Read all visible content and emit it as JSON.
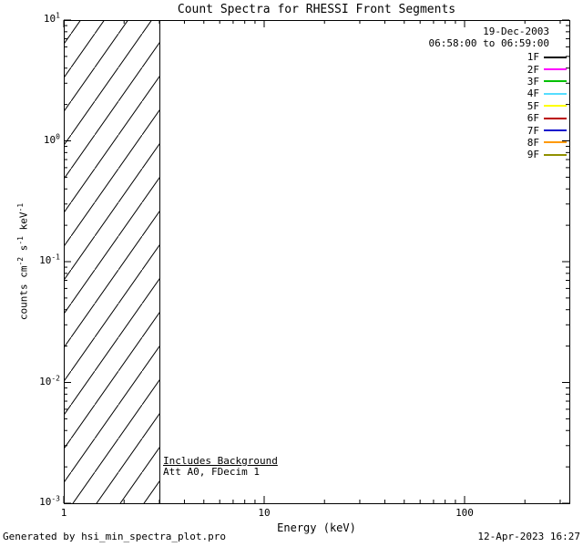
{
  "footer": {
    "left": "Generated by hsi_min_spectra_plot.pro",
    "right": "12-Apr-2023 16:27"
  },
  "chart_data": {
    "type": "line",
    "title": "Count Spectra for RHESSI Front Segments",
    "xlabel": "Energy (keV)",
    "ylabel": "counts cm-2 s-1 keV-1",
    "ylabel_tokens": [
      {
        "t": "counts cm"
      },
      {
        "t": "-2",
        "sup": true
      },
      {
        "t": " s"
      },
      {
        "t": "-1",
        "sup": true
      },
      {
        "t": " keV"
      },
      {
        "t": "-1",
        "sup": true
      }
    ],
    "xscale": "log",
    "yscale": "log",
    "xlim": [
      1,
      333
    ],
    "ylim": [
      0.001,
      10
    ],
    "x_major_ticks": [
      1,
      10,
      100
    ],
    "x_tick_labels": [
      "1",
      "10",
      "100"
    ],
    "y_major_tick_exponents": [
      1,
      0,
      -1,
      -2,
      -3
    ],
    "grid": false,
    "legend": {
      "position": "top-right",
      "header": [
        "19-Dec-2003",
        "06:58:00 to 06:59:00"
      ]
    },
    "series": [
      {
        "name": "1F",
        "color": "#000000",
        "values": []
      },
      {
        "name": "2F",
        "color": "#ff00ff",
        "values": []
      },
      {
        "name": "3F",
        "color": "#00c000",
        "values": []
      },
      {
        "name": "4F",
        "color": "#55ddff",
        "values": []
      },
      {
        "name": "5F",
        "color": "#ffff00",
        "values": []
      },
      {
        "name": "6F",
        "color": "#bb0000",
        "values": []
      },
      {
        "name": "7F",
        "color": "#1111cc",
        "values": []
      },
      {
        "name": "8F",
        "color": "#ff9900",
        "values": []
      },
      {
        "name": "9F",
        "color": "#909000",
        "values": []
      }
    ],
    "series_note": "No spectrum curves are visible in the plot area; only the legend, a hatched low-energy band and annotations are drawn.",
    "annotations": [
      "Includes Background",
      "Att A0, FDecim 1"
    ],
    "hatched_region": {
      "x_from": 1,
      "x_to": 3,
      "style": "diagonal-hatch"
    }
  }
}
